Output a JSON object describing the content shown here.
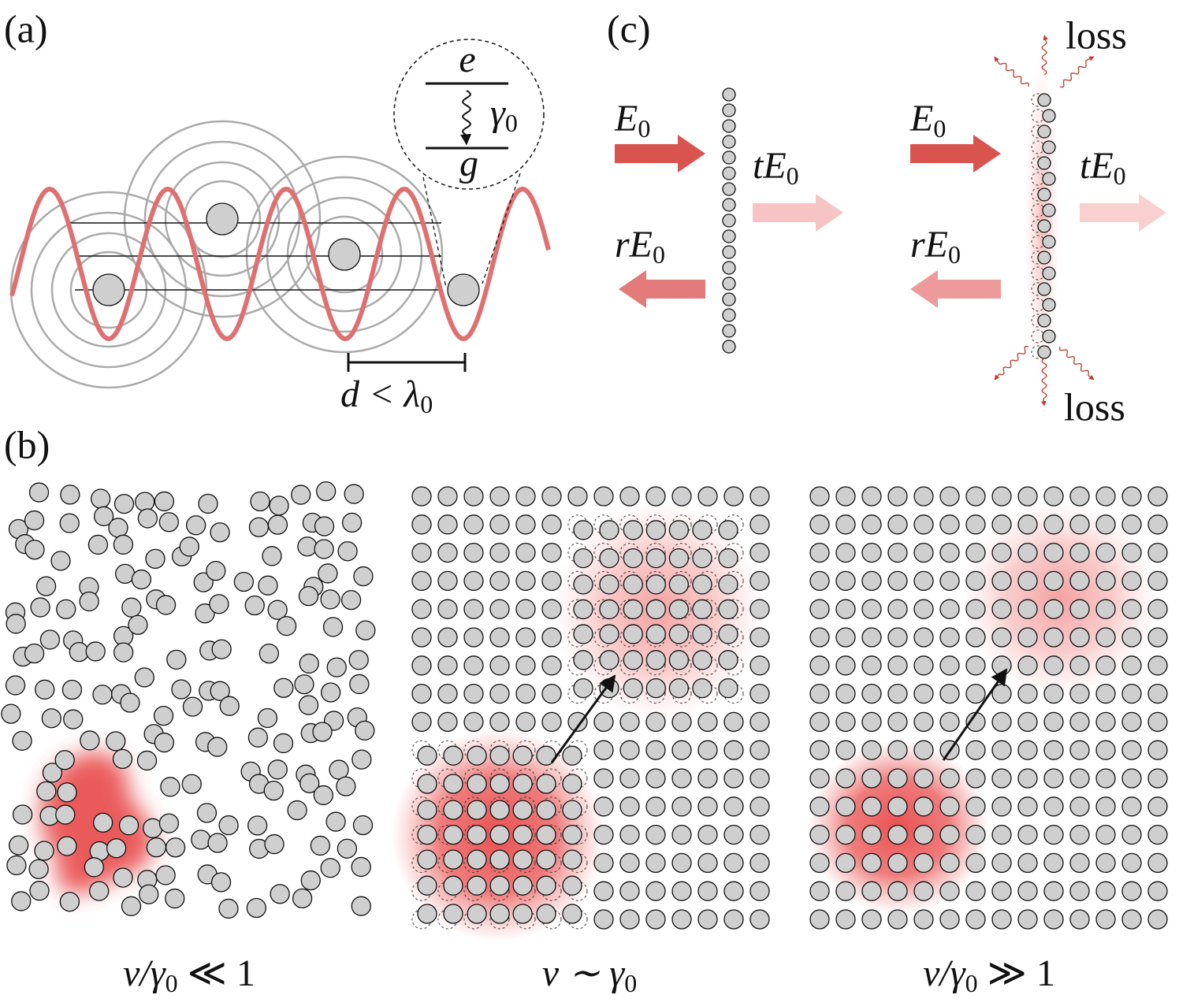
{
  "panel_a": {
    "label": "(a)",
    "upper_level": "e",
    "lower_level": "g",
    "decay": {
      "base": "γ",
      "sub": "0"
    },
    "spacing": {
      "base": "d < λ",
      "sub": "0"
    }
  },
  "panel_b": {
    "label": "(b)",
    "captions": [
      {
        "base": "ν/γ",
        "sub": "0",
        "rest": " ≪ 1"
      },
      {
        "base": "ν ∼ γ",
        "sub": "0"
      },
      {
        "base": "ν/γ",
        "sub": "0",
        "rest": " ≫ 1"
      }
    ]
  },
  "panel_c": {
    "label": "(c)",
    "left": {
      "incident": {
        "base": "E",
        "sub": "0"
      },
      "transmitted": {
        "base": "tE",
        "sub": "0"
      },
      "reflected": {
        "base": "rE",
        "sub": "0"
      }
    },
    "right": {
      "incident": {
        "base": "E",
        "sub": "0"
      },
      "transmitted": {
        "base": "tE",
        "sub": "0"
      },
      "reflected": {
        "base": "rE",
        "sub": "0"
      },
      "loss_top": "loss",
      "loss_bottom": "loss"
    }
  }
}
